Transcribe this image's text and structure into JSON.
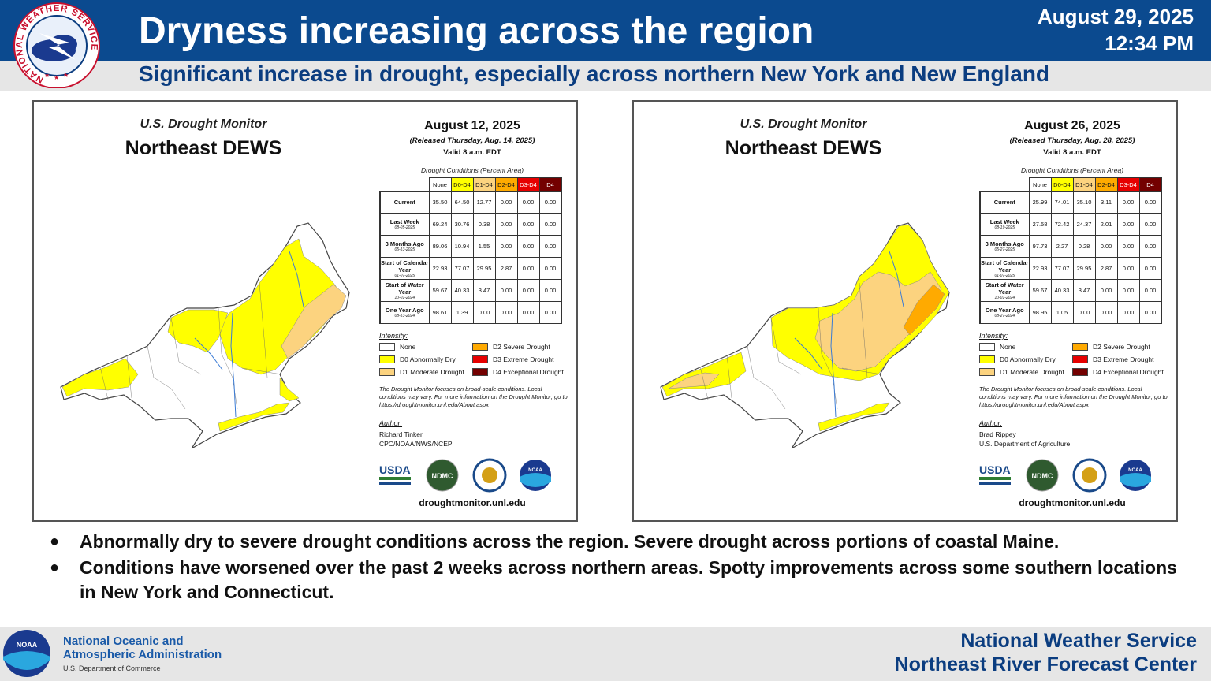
{
  "header": {
    "title": "Dryness increasing across the region",
    "subtitle": "Significant increase in drought, especially across northern New York and New England",
    "date": "August 29, 2025",
    "time": "12:34 PM",
    "logo_ring_text": "NATIONAL WEATHER SERVICE",
    "colors": {
      "band": "#0b4a8f",
      "subtitle": "#0b3d80"
    }
  },
  "panels": [
    {
      "monitor_title": "U.S. Drought Monitor",
      "region": "Northeast DEWS",
      "report_date": "August 12, 2025",
      "released": "(Released Thursday, Aug. 14, 2025)",
      "valid": "Valid 8 a.m. EDT",
      "table_caption": "Drought Conditions (Percent Area)",
      "columns": [
        "None",
        "D0-D4",
        "D1-D4",
        "D2-D4",
        "D3-D4",
        "D4"
      ],
      "rows": [
        {
          "label": "Current",
          "date": "",
          "values": [
            "35.50",
            "64.50",
            "12.77",
            "0.00",
            "0.00",
            "0.00"
          ]
        },
        {
          "label": "Last Week",
          "date": "08-05-2025",
          "values": [
            "69.24",
            "30.76",
            "0.38",
            "0.00",
            "0.00",
            "0.00"
          ]
        },
        {
          "label": "3 Months Ago",
          "date": "05-13-2025",
          "values": [
            "89.06",
            "10.94",
            "1.55",
            "0.00",
            "0.00",
            "0.00"
          ]
        },
        {
          "label": "Start of Calendar Year",
          "date": "01-07-2025",
          "values": [
            "22.93",
            "77.07",
            "29.95",
            "2.87",
            "0.00",
            "0.00"
          ]
        },
        {
          "label": "Start of Water Year",
          "date": "10-01-2024",
          "values": [
            "59.67",
            "40.33",
            "3.47",
            "0.00",
            "0.00",
            "0.00"
          ]
        },
        {
          "label": "One Year Ago",
          "date": "08-13-2024",
          "values": [
            "98.61",
            "1.39",
            "0.00",
            "0.00",
            "0.00",
            "0.00"
          ]
        }
      ],
      "intensity_label": "Intensity:",
      "legend": [
        "None",
        "D0 Abnormally Dry",
        "D1 Moderate Drought",
        "D2 Severe Drought",
        "D3 Extreme Drought",
        "D4 Exceptional Drought"
      ],
      "note": "The Drought Monitor focuses on broad-scale conditions. Local conditions may vary. For more information on the Drought Monitor, go to https://droughtmonitor.unl.edu/About.aspx",
      "author_label": "Author:",
      "author_name": "Richard Tinker",
      "author_org": "CPC/NOAA/NWS/NCEP",
      "url": "droughtmonitor.unl.edu",
      "logo_text": {
        "usda": "USDA",
        "ndmc": "NDMC",
        "noaa": "NOAA"
      }
    },
    {
      "monitor_title": "U.S. Drought Monitor",
      "region": "Northeast DEWS",
      "report_date": "August 26, 2025",
      "released": "(Released Thursday, Aug. 28, 2025)",
      "valid": "Valid 8 a.m. EDT",
      "table_caption": "Drought Conditions (Percent Area)",
      "columns": [
        "None",
        "D0-D4",
        "D1-D4",
        "D2-D4",
        "D3-D4",
        "D4"
      ],
      "rows": [
        {
          "label": "Current",
          "date": "",
          "values": [
            "25.99",
            "74.01",
            "35.10",
            "3.11",
            "0.00",
            "0.00"
          ]
        },
        {
          "label": "Last Week",
          "date": "08-19-2025",
          "values": [
            "27.58",
            "72.42",
            "24.37",
            "2.01",
            "0.00",
            "0.00"
          ]
        },
        {
          "label": "3 Months Ago",
          "date": "05-27-2025",
          "values": [
            "97.73",
            "2.27",
            "0.28",
            "0.00",
            "0.00",
            "0.00"
          ]
        },
        {
          "label": "Start of Calendar Year",
          "date": "01-07-2025",
          "values": [
            "22.93",
            "77.07",
            "29.95",
            "2.87",
            "0.00",
            "0.00"
          ]
        },
        {
          "label": "Start of Water Year",
          "date": "10-01-2024",
          "values": [
            "59.67",
            "40.33",
            "3.47",
            "0.00",
            "0.00",
            "0.00"
          ]
        },
        {
          "label": "One Year Ago",
          "date": "08-27-2024",
          "values": [
            "98.95",
            "1.05",
            "0.00",
            "0.00",
            "0.00",
            "0.00"
          ]
        }
      ],
      "intensity_label": "Intensity:",
      "legend": [
        "None",
        "D0 Abnormally Dry",
        "D1 Moderate Drought",
        "D2 Severe Drought",
        "D3 Extreme Drought",
        "D4 Exceptional Drought"
      ],
      "note": "The Drought Monitor focuses on broad-scale conditions. Local conditions may vary. For more information on the Drought Monitor, go to https://droughtmonitor.unl.edu/About.aspx",
      "author_label": "Author:",
      "author_name": "Brad Rippey",
      "author_org": "U.S. Department of Agriculture",
      "url": "droughtmonitor.unl.edu",
      "logo_text": {
        "usda": "USDA",
        "ndmc": "NDMC",
        "noaa": "NOAA"
      }
    }
  ],
  "drought_colors": {
    "none": "#ffffff",
    "d0": "#ffff00",
    "d1": "#fcd37f",
    "d2": "#ffaa00",
    "d3": "#e60000",
    "d4": "#730000"
  },
  "bullets": [
    "Abnormally dry to severe drought conditions across the region. Severe drought across portions of coastal Maine.",
    "Conditions have worsened over the past 2 weeks across northern areas. Spotty improvements across some southern locations in New York and Connecticut."
  ],
  "footer": {
    "noaa_line1": "National Oceanic and",
    "noaa_line2": "Atmospheric Administration",
    "noaa_dept": "U.S. Department of Commerce",
    "noaa_logo_text": "NOAA",
    "right_line1": "National Weather Service",
    "right_line2": "Northeast River Forecast Center"
  }
}
